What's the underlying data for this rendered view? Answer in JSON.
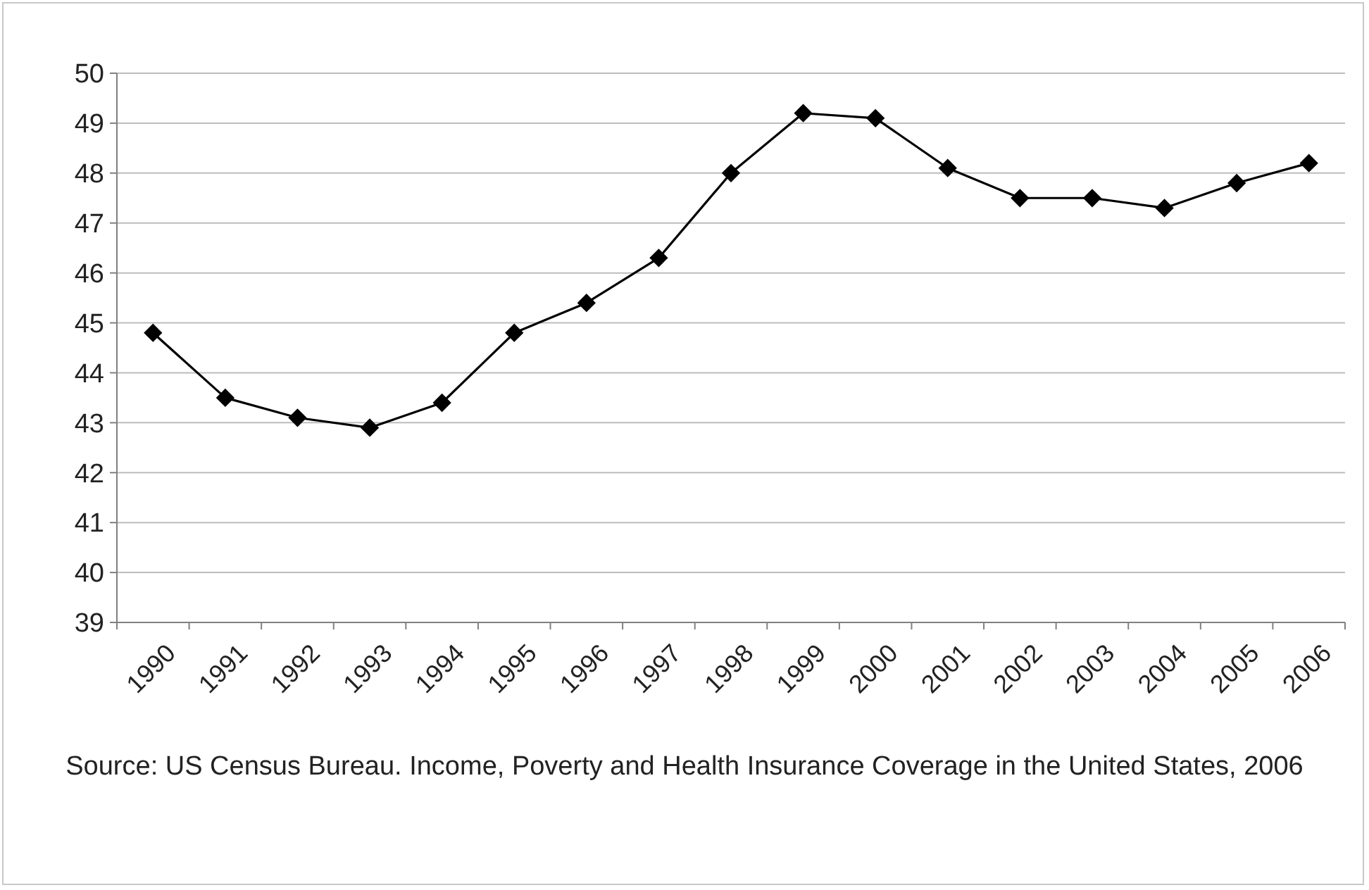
{
  "chart_data": {
    "type": "line",
    "categories": [
      "1990",
      "1991",
      "1992",
      "1993",
      "1994",
      "1995",
      "1996",
      "1997",
      "1998",
      "1999",
      "2000",
      "2001",
      "2002",
      "2003",
      "2004",
      "2005",
      "2006"
    ],
    "series": [
      {
        "color": "#000000",
        "values": [
          44.8,
          43.5,
          43.1,
          42.9,
          43.4,
          44.8,
          45.4,
          46.3,
          48.0,
          49.2,
          49.1,
          48.1,
          47.5,
          47.5,
          47.3,
          47.8,
          48.2
        ]
      }
    ],
    "ylim": [
      39,
      50
    ],
    "yticks": [
      39,
      40,
      41,
      42,
      43,
      44,
      45,
      46,
      47,
      48,
      49,
      50
    ],
    "grid": "y",
    "marker": "diamond",
    "line_style": "solid",
    "annotations": [
      "Source: US Census Bureau. Income, Poverty and Health Insurance Coverage in the United States, 2006"
    ]
  }
}
